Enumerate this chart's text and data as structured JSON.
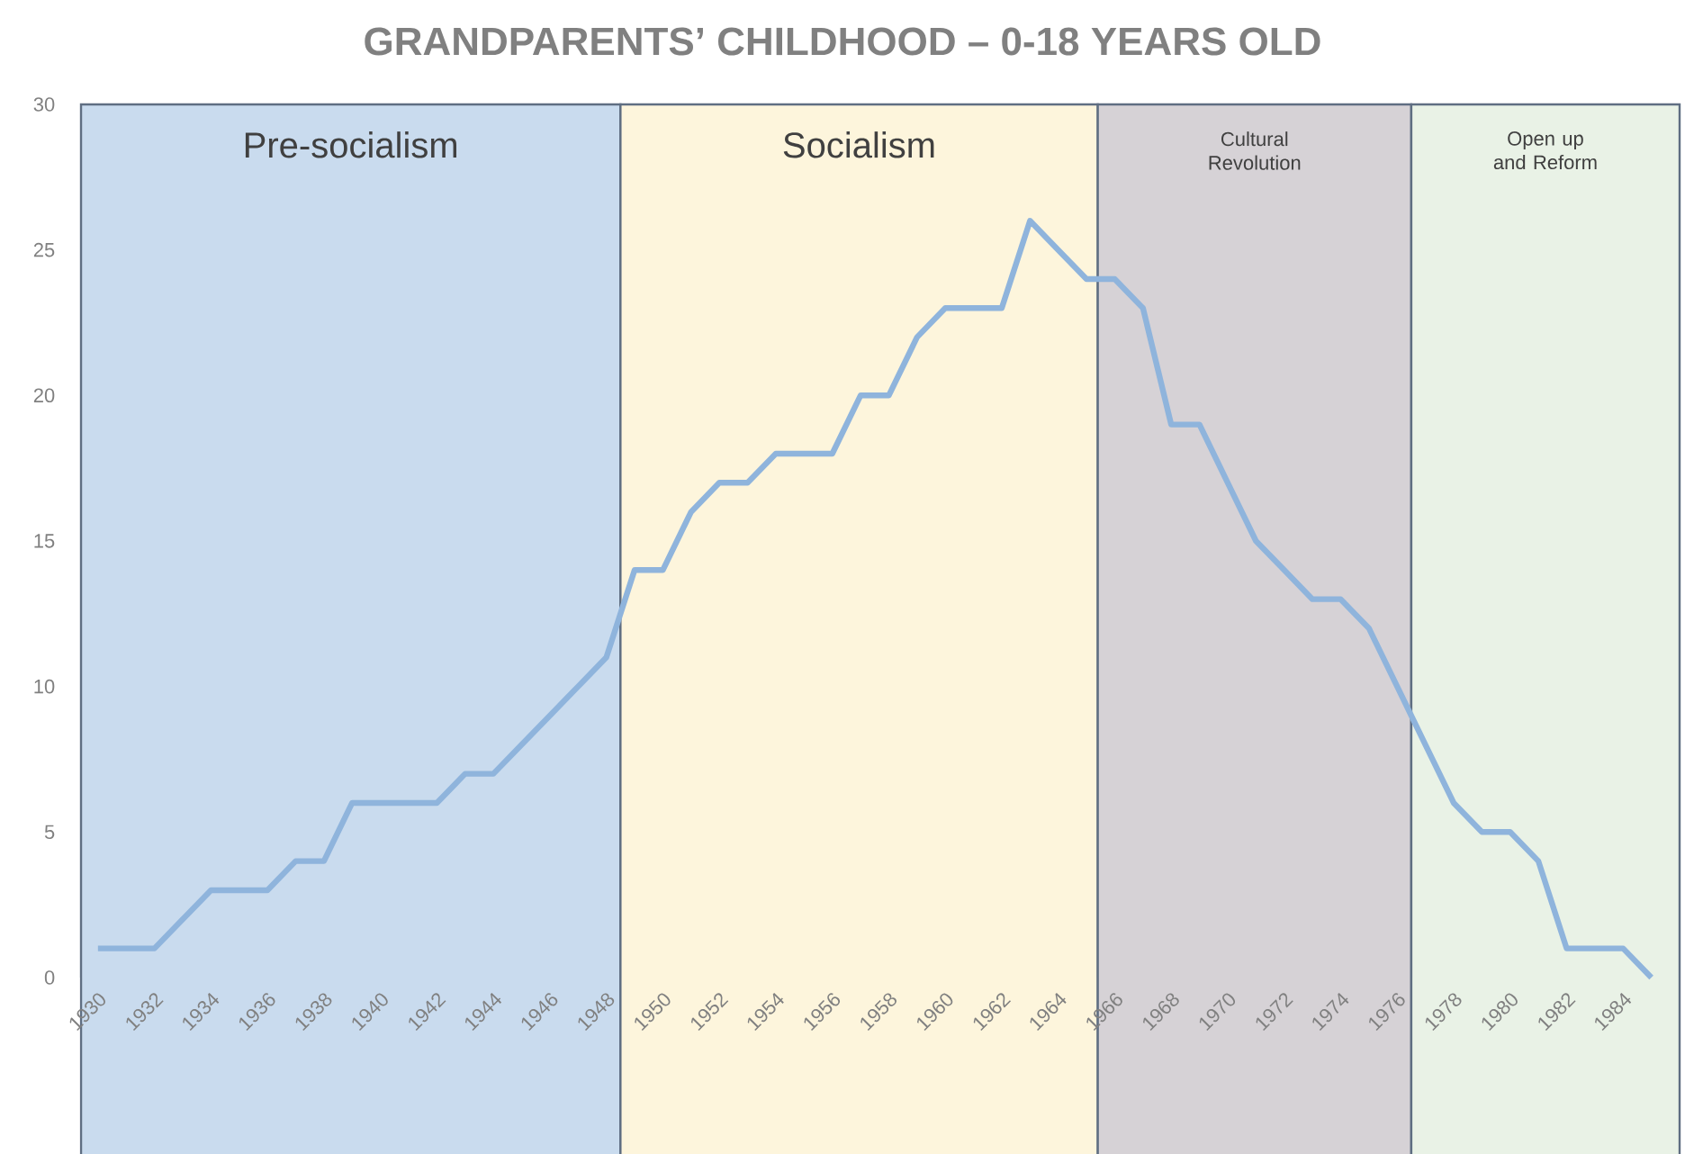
{
  "chart_data": {
    "type": "line",
    "title": "GRANDPARENTS’ CHILDHOOD – 0-18 YEARS OLD",
    "x": [
      1930,
      1931,
      1932,
      1933,
      1934,
      1935,
      1936,
      1937,
      1938,
      1939,
      1940,
      1941,
      1942,
      1943,
      1944,
      1945,
      1946,
      1947,
      1948,
      1949,
      1950,
      1951,
      1952,
      1953,
      1954,
      1955,
      1956,
      1957,
      1958,
      1959,
      1960,
      1961,
      1962,
      1963,
      1964,
      1965,
      1966,
      1967,
      1968,
      1969,
      1970,
      1971,
      1972,
      1973,
      1974,
      1975,
      1976,
      1977,
      1978,
      1979,
      1980,
      1981,
      1982,
      1983,
      1984,
      1985
    ],
    "series": [
      {
        "color": "#8fb4dc",
        "values": [
          1,
          1,
          1,
          2,
          3,
          3,
          3,
          4,
          4,
          6,
          6,
          6,
          6,
          7,
          7,
          8,
          9,
          10,
          11,
          14,
          14,
          16,
          17,
          17,
          18,
          18,
          18,
          20,
          20,
          22,
          23,
          23,
          23,
          26,
          25,
          24,
          24,
          23,
          19,
          19,
          17,
          15,
          14,
          13,
          13,
          12,
          10,
          8,
          6,
          5,
          5,
          4,
          1,
          1,
          1,
          0
        ]
      }
    ],
    "xlim": [
      1929.4,
      1986
    ],
    "ylim": [
      0,
      30
    ],
    "xticks": [
      1930,
      1932,
      1934,
      1936,
      1938,
      1940,
      1942,
      1944,
      1946,
      1948,
      1950,
      1952,
      1954,
      1956,
      1958,
      1960,
      1962,
      1964,
      1966,
      1968,
      1970,
      1972,
      1974,
      1976,
      1978,
      1980,
      1982,
      1984
    ],
    "yticks": [
      0,
      5,
      10,
      15,
      20,
      25,
      30
    ],
    "bands": [
      {
        "axis": "x",
        "from": 1929.4,
        "to": 1948.5,
        "label": "Pre-socialism",
        "color": "#c9dbee"
      },
      {
        "axis": "x",
        "from": 1948.5,
        "to": 1965.4,
        "label": "Socialism",
        "color": "#fdf5dc"
      },
      {
        "axis": "x",
        "from": 1965.4,
        "to": 1976.5,
        "label": "Cultural Revolution",
        "color": "#d6d2d6"
      },
      {
        "axis": "x",
        "from": 1976.5,
        "to": 1986,
        "label": "Open up and Reform",
        "color": "#e9f2e6"
      }
    ]
  }
}
